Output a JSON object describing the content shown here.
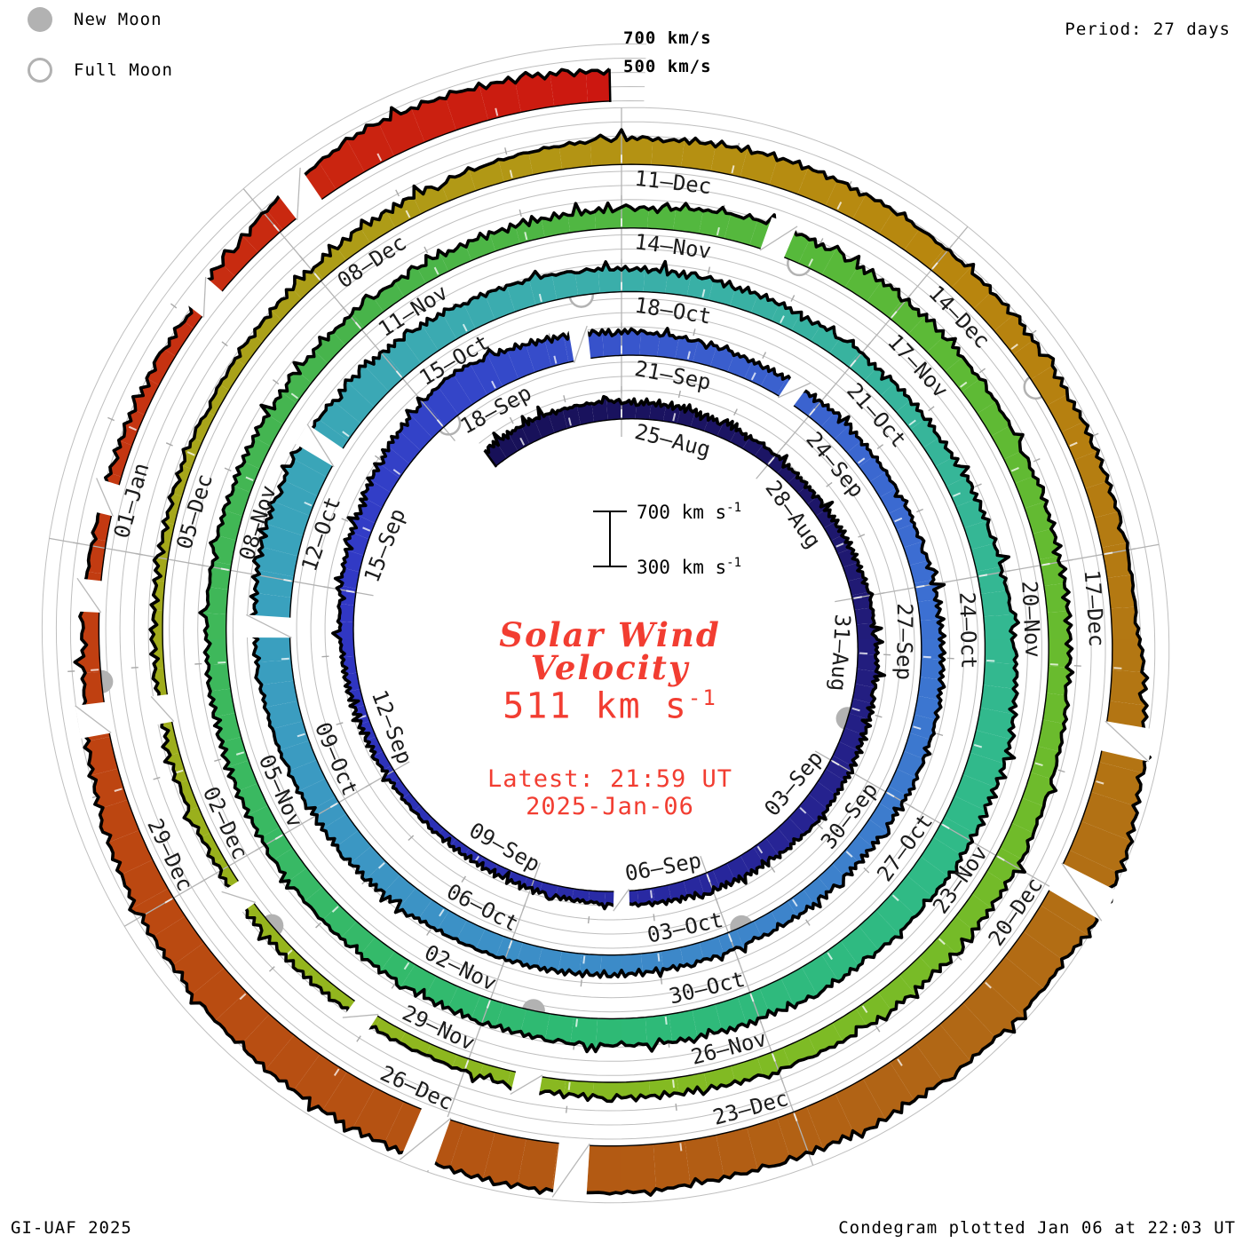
{
  "header": {
    "period_label": "Period: 27 days"
  },
  "legend": {
    "new_moon_label": "New Moon",
    "full_moon_label": "Full Moon"
  },
  "outer_scale": {
    "line700": "700 km/s",
    "line500": "500 km/s"
  },
  "scale_bar": {
    "top": "700 km s",
    "top_sup": "-1",
    "bottom": "300 km s",
    "bottom_sup": "-1"
  },
  "center": {
    "title_line1": "Solar Wind",
    "title_line2": "Velocity",
    "value": "511 km s",
    "value_sup": "-1",
    "latest": "Latest: 21:59 UT",
    "date": "2025-Jan-06"
  },
  "footer": {
    "credit": "GI-UAF 2025",
    "plotted": "Condegram plotted Jan 06 at 22:03 UT"
  },
  "colors": {
    "accent_red": "#f23d31",
    "grid": "#bfbfbf",
    "ray": "#b3b3b3",
    "moon": "#b2b2b2",
    "edge": "#000000",
    "background": "#ffffff"
  },
  "chart_data": {
    "type": "area",
    "form": "condegram-spiral",
    "title": "Solar Wind Velocity",
    "units": "km/s",
    "period_days": 27,
    "epoch_day0": "2024-08-25",
    "t_range": [
      -2.7,
      134.91
    ],
    "baseline_kms": 300,
    "grid_step_kms": 100,
    "grid_levels_kms": [
      300,
      400,
      500,
      600,
      700
    ],
    "latest_kms": 511,
    "latest_label": "511 km s-1 at 21:59 UT 2025-Jan-06",
    "rays": [
      {
        "angle_deg": 0,
        "labels": [
          "25–Aug",
          "21–Sep",
          "18–Oct",
          "14–Nov",
          "11–Dec"
        ]
      },
      {
        "angle_deg": 40,
        "labels": [
          "28–Aug",
          "24–Sep",
          "21–Oct",
          "17–Nov",
          "14–Dec"
        ]
      },
      {
        "angle_deg": 80,
        "labels": [
          "31–Aug",
          "27–Sep",
          "24–Oct",
          "20–Nov",
          "17–Dec"
        ]
      },
      {
        "angle_deg": 120,
        "labels": [
          "03–Sep",
          "30–Sep",
          "27–Oct",
          "23–Nov",
          "20–Dec"
        ]
      },
      {
        "angle_deg": 160,
        "labels": [
          "06–Sep",
          "03–Oct",
          "30–Oct",
          "26–Nov",
          "23–Dec"
        ]
      },
      {
        "angle_deg": 200,
        "labels": [
          "09–Sep",
          "06–Oct",
          "02–Nov",
          "29–Nov",
          "26–Dec"
        ]
      },
      {
        "angle_deg": 240,
        "labels": [
          "12–Sep",
          "09–Oct",
          "05–Nov",
          "02–Dec",
          "29–Dec"
        ]
      },
      {
        "angle_deg": 280,
        "labels": [
          "15–Sep",
          "12–Oct",
          "08–Nov",
          "05–Dec",
          "01–Jan"
        ]
      },
      {
        "angle_deg": 320,
        "labels": [
          "18–Sep",
          "15–Oct",
          "11–Nov",
          "08–Dec"
        ]
      }
    ],
    "series_control_points": [
      [
        -2.7,
        430
      ],
      [
        -1.5,
        445
      ],
      [
        0,
        425
      ],
      [
        2,
        400
      ],
      [
        4,
        380
      ],
      [
        6,
        420
      ],
      [
        8,
        445
      ],
      [
        10,
        468
      ],
      [
        12,
        430
      ],
      [
        14,
        382
      ],
      [
        16,
        362
      ],
      [
        18,
        362
      ],
      [
        20,
        388
      ],
      [
        22,
        432
      ],
      [
        23.5,
        505
      ],
      [
        24.5,
        555
      ],
      [
        26,
        492
      ],
      [
        27,
        465
      ],
      [
        29,
        432
      ],
      [
        31,
        430
      ],
      [
        33,
        437
      ],
      [
        35,
        458
      ],
      [
        37,
        430
      ],
      [
        39,
        425
      ],
      [
        41,
        440
      ],
      [
        43,
        462
      ],
      [
        45,
        500
      ],
      [
        47,
        542
      ],
      [
        48.5,
        570
      ],
      [
        50,
        558
      ],
      [
        52,
        502
      ],
      [
        54,
        462
      ],
      [
        56,
        432
      ],
      [
        58,
        432
      ],
      [
        60,
        480
      ],
      [
        62,
        556
      ],
      [
        63.5,
        540
      ],
      [
        65,
        514
      ],
      [
        67,
        494
      ],
      [
        69,
        472
      ],
      [
        71,
        462
      ],
      [
        73,
        447
      ],
      [
        75,
        437
      ],
      [
        77,
        428
      ],
      [
        79,
        424
      ],
      [
        81,
        432
      ],
      [
        82.5,
        492
      ],
      [
        84,
        468
      ],
      [
        86,
        447
      ],
      [
        88,
        447
      ],
      [
        90,
        470
      ],
      [
        92,
        452
      ],
      [
        94,
        412
      ],
      [
        96,
        392
      ],
      [
        98,
        380
      ],
      [
        100,
        370
      ],
      [
        102,
        361
      ],
      [
        104,
        381
      ],
      [
        106,
        431
      ],
      [
        108,
        481
      ],
      [
        109.5,
        502
      ],
      [
        111,
        481
      ],
      [
        113,
        466
      ],
      [
        114.5,
        473
      ],
      [
        115.8,
        600
      ],
      [
        116.6,
        695
      ],
      [
        117.5,
        658
      ],
      [
        119,
        621
      ],
      [
        120.5,
        602
      ],
      [
        122,
        641
      ],
      [
        123.5,
        628
      ],
      [
        125,
        598
      ],
      [
        126.5,
        539
      ],
      [
        128,
        421
      ],
      [
        129.5,
        388
      ],
      [
        131,
        391
      ],
      [
        132,
        477
      ],
      [
        133,
        561
      ],
      [
        134,
        541
      ],
      [
        134.91,
        511
      ]
    ],
    "data_gaps_t": [
      13.5,
      26.4,
      29.6,
      47.4,
      49.7,
      82.6,
      95.4,
      97.1,
      98.7,
      100.6,
      115.6,
      116.9,
      121.9,
      123.1,
      127.6,
      128.6,
      129.4,
      131.2,
      132.3
    ],
    "moons": {
      "new_t": [
        8.2,
        38.8,
        68.5,
        98.3,
        127.9
      ],
      "new_dates": [
        "02-Sep",
        "02-Oct",
        "01-Nov",
        "01-Dec",
        "30-Dec"
      ],
      "full_t": [
        24.1,
        53.5,
        82.9,
        112.4
      ],
      "full_dates": [
        "17-Sep",
        "17-Oct",
        "15-Nov",
        "15-Dec"
      ]
    },
    "colormap": [
      [
        -3,
        "#171057"
      ],
      [
        4,
        "#1d1668"
      ],
      [
        10,
        "#262391"
      ],
      [
        16,
        "#2b2fb2"
      ],
      [
        21,
        "#3138c5"
      ],
      [
        25,
        "#3447c9"
      ],
      [
        28,
        "#3a5ccd"
      ],
      [
        33,
        "#3c6fd2"
      ],
      [
        38,
        "#3d83cb"
      ],
      [
        43,
        "#3c92c6"
      ],
      [
        48,
        "#3aa2bd"
      ],
      [
        53,
        "#3badad"
      ],
      [
        58,
        "#37b59b"
      ],
      [
        63,
        "#30ba88"
      ],
      [
        68,
        "#2eba74"
      ],
      [
        73,
        "#3bb95f"
      ],
      [
        78,
        "#48b44b"
      ],
      [
        83,
        "#57b93a"
      ],
      [
        88,
        "#68bb2e"
      ],
      [
        93,
        "#7fbb24"
      ],
      [
        98,
        "#95b51d"
      ],
      [
        103,
        "#a7a51a"
      ],
      [
        107,
        "#b29715"
      ],
      [
        111,
        "#b8860e"
      ],
      [
        115,
        "#b37713"
      ],
      [
        119,
        "#b16515"
      ],
      [
        123,
        "#b45412"
      ],
      [
        127,
        "#bd4511"
      ],
      [
        130,
        "#c53511"
      ],
      [
        133,
        "#ca2310"
      ],
      [
        135.5,
        "#cd1310"
      ]
    ]
  }
}
